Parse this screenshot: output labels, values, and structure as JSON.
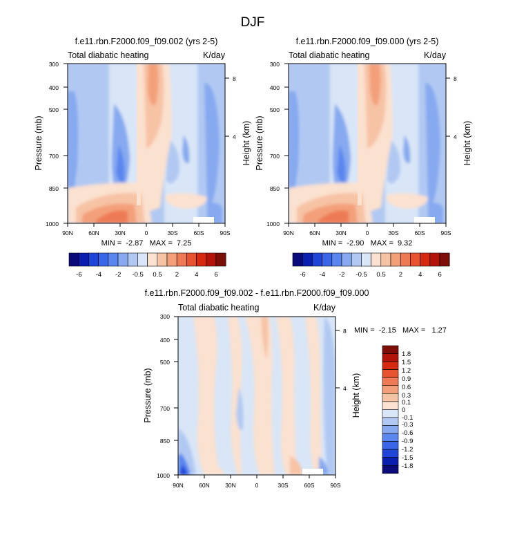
{
  "page": {
    "title": "DJF"
  },
  "colors": {
    "bg": "#ffffff",
    "axis": "#000000",
    "palette_main": [
      "#0a0a7a",
      "#0a1fb0",
      "#1f44d8",
      "#3a66e8",
      "#5a86ef",
      "#86a9f0",
      "#b1c9f2",
      "#d9e6f7",
      "#fbe1cf",
      "#f7c3a5",
      "#f3a07a",
      "#ee7a55",
      "#e8532f",
      "#d62a10",
      "#b31409",
      "#7d0f08"
    ],
    "palette_diff": [
      "#0a0a7a",
      "#0a1fb0",
      "#1f44d8",
      "#3a66e8",
      "#5a86ef",
      "#86a9f0",
      "#b1c9f2",
      "#d9e6f7",
      "#fbe1cf",
      "#f7c3a5",
      "#f3a07a",
      "#ee7a55",
      "#e8532f",
      "#d62a10",
      "#b31409",
      "#7d0f08"
    ]
  },
  "chart_data": [
    {
      "type": "heatmap",
      "id": "panel-1",
      "title": "f.e11.rbn.F2000.f09_f09.002 (yrs 2-5)",
      "left_label": "Total diabatic heating",
      "right_label": "K/day",
      "ylabel": "Pressure (mb)",
      "ylabel_right": "Height (km)",
      "xticks": [
        "90N",
        "60N",
        "30N",
        "0",
        "30S",
        "60S",
        "90S"
      ],
      "yticks": [
        "300",
        "400",
        "500",
        "700",
        "850",
        "1000"
      ],
      "right_ticks": [
        "8",
        "4"
      ],
      "minmax_text": "MIN =  -2.87   MAX =  7.25",
      "colorbar_levels": [
        "-6",
        "-4",
        "-2",
        "-0.5",
        "0.5",
        "2",
        "4",
        "6"
      ]
    },
    {
      "type": "heatmap",
      "id": "panel-2",
      "title": "f.e11.rbn.F2000.f09_f09.000 (yrs 2-5)",
      "left_label": "Total diabatic heating",
      "right_label": "K/day",
      "ylabel": "Pressure (mb)",
      "ylabel_right": "Height (km)",
      "xticks": [
        "90N",
        "60N",
        "30N",
        "0",
        "30S",
        "60S",
        "90S"
      ],
      "yticks": [
        "300",
        "400",
        "500",
        "700",
        "850",
        "1000"
      ],
      "right_ticks": [
        "8",
        "4"
      ],
      "minmax_text": "MIN =  -2.90   MAX =  9.32",
      "colorbar_levels": [
        "-6",
        "-4",
        "-2",
        "-0.5",
        "0.5",
        "2",
        "4",
        "6"
      ]
    },
    {
      "type": "heatmap",
      "id": "panel-diff",
      "title": "f.e11.rbn.F2000.f09_f09.002 - f.e11.rbn.F2000.f09_f09.000",
      "left_label": "Total diabatic heating",
      "right_label": "K/day",
      "ylabel": "Pressure (mb)",
      "ylabel_right": "Height (km)",
      "xticks": [
        "90N",
        "60N",
        "30N",
        "0",
        "30S",
        "60S",
        "90S"
      ],
      "yticks": [
        "300",
        "400",
        "500",
        "700",
        "850",
        "1000"
      ],
      "right_ticks": [
        "8",
        "4"
      ],
      "minmax_text": "MIN =  -2.15   MAX =   1.27",
      "colorbar_levels": [
        "1.8",
        "1.5",
        "1.2",
        "0.9",
        "0.6",
        "0.3",
        "0.1",
        "0",
        "-0.1",
        "-0.3",
        "-0.6",
        "-0.9",
        "-1.2",
        "-1.5",
        "-1.8"
      ]
    }
  ]
}
